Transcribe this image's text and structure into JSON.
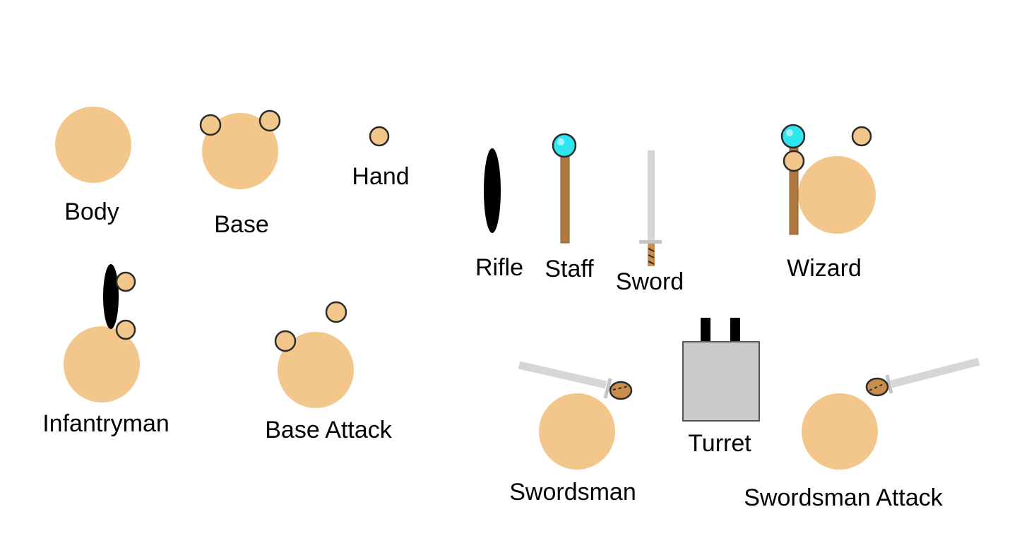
{
  "colors": {
    "skin": "#f3c78c",
    "outline": "#2b2b2b",
    "orb": "#2ee6f0",
    "wood": "#b07a3f",
    "blade": "#d6d6d6",
    "metal": "#c9c9c9",
    "black": "#000000"
  },
  "labels": {
    "body": "Body",
    "base": "Base",
    "hand": "Hand",
    "rifle": "Rifle",
    "staff": "Staff",
    "sword": "Sword",
    "wizard": "Wizard",
    "infantryman": "Infantryman",
    "base_attack": "Base Attack",
    "swordsman": "Swordsman",
    "turret": "Turret",
    "swordsman_attack": "Swordsman Attack"
  }
}
